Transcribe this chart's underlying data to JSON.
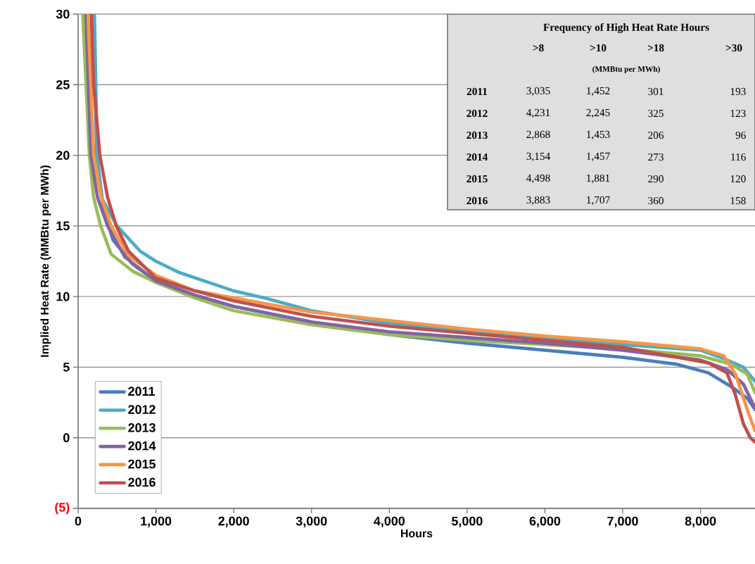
{
  "chart_data": {
    "type": "line",
    "xlabel": "Hours",
    "ylabel": "Implied Heat Rate (MMBtu per MWh)",
    "xlim": [
      0,
      8700
    ],
    "ylim": [
      -5,
      30
    ],
    "xticks": [
      0,
      {
        "value": 1000,
        "label": "1,000"
      },
      {
        "value": 2000,
        "label": "2,000"
      },
      {
        "value": 3000,
        "label": "3,000"
      },
      {
        "value": 4000,
        "label": "4,000"
      },
      {
        "value": 5000,
        "label": "5,000"
      },
      {
        "value": 6000,
        "label": "6,000"
      },
      {
        "value": 7000,
        "label": "7,000"
      },
      {
        "value": 8000,
        "label": "8,000"
      }
    ],
    "yticks": [
      {
        "value": -5,
        "label": "(5)"
      },
      0,
      5,
      10,
      15,
      20,
      25,
      30
    ],
    "grid": "y",
    "legend": "bottom left",
    "series": [
      {
        "name": "2011",
        "color": "#4a7ebb",
        "x": [
          200,
          240,
          330,
          450,
          700,
          1000,
          1500,
          2000,
          3000,
          4000,
          5000,
          6000,
          7000,
          7700,
          8100,
          8400,
          8600,
          8700
        ],
        "values": [
          30,
          20,
          16,
          14,
          12.3,
          11.1,
          10.1,
          9.3,
          8.2,
          7.3,
          6.7,
          6.2,
          5.7,
          5.2,
          4.6,
          3.6,
          2.8,
          2.0
        ]
      },
      {
        "name": "2012",
        "color": "#4bacc6",
        "x": [
          210,
          245,
          300,
          500,
          800,
          1000,
          1300,
          2000,
          2400,
          3000,
          4000,
          5000,
          6000,
          7000,
          8000,
          8300,
          8550,
          8700
        ],
        "values": [
          30,
          20,
          17,
          15,
          13.2,
          12.5,
          11.7,
          10.4,
          9.9,
          9.0,
          8.1,
          7.5,
          7.0,
          6.6,
          6.2,
          5.6,
          5.0,
          4.0
        ]
      },
      {
        "name": "2013",
        "color": "#9bbb59",
        "x": [
          60,
          145,
          200,
          290,
          425,
          700,
          1000,
          1500,
          2000,
          3000,
          4000,
          5000,
          6000,
          7000,
          8000,
          8400,
          8600,
          8700
        ],
        "values": [
          30,
          20,
          17,
          15,
          13,
          11.8,
          11.0,
          9.9,
          9.0,
          8.0,
          7.3,
          6.9,
          6.6,
          6.3,
          5.8,
          5.2,
          4.5,
          3.2
        ]
      },
      {
        "name": "2014",
        "color": "#8064a2",
        "x": [
          100,
          165,
          250,
          380,
          600,
          1000,
          1500,
          2000,
          3000,
          4000,
          5000,
          6000,
          7000,
          8000,
          8350,
          8550,
          8700
        ],
        "values": [
          30,
          20,
          17,
          15,
          12.8,
          11.1,
          10.1,
          9.3,
          8.2,
          7.5,
          7.1,
          6.7,
          6.2,
          5.5,
          4.8,
          3.8,
          2.1
        ]
      },
      {
        "name": "2015",
        "color": "#f79646",
        "x": [
          127,
          200,
          300,
          425,
          650,
          1000,
          1500,
          2000,
          3000,
          4000,
          5000,
          6000,
          7000,
          8000,
          8300,
          8450,
          8600,
          8700
        ],
        "values": [
          30,
          20,
          17,
          15,
          12.9,
          11.5,
          10.4,
          9.9,
          8.9,
          8.3,
          7.7,
          7.2,
          6.8,
          6.3,
          5.8,
          4.5,
          2.0,
          0.5
        ]
      },
      {
        "name": "2016",
        "color": "#c0504d",
        "x": [
          170,
          200,
          280,
          380,
          490,
          650,
          1000,
          1500,
          2000,
          3000,
          4000,
          5000,
          6000,
          7000,
          8100,
          8340,
          8450,
          8550,
          8640,
          8700
        ],
        "values": [
          30,
          25,
          20,
          17,
          15,
          13.2,
          11.3,
          10.4,
          9.7,
          8.6,
          7.9,
          7.4,
          6.9,
          6.4,
          5.3,
          4.6,
          3.0,
          1.0,
          0,
          -0.3
        ]
      }
    ],
    "annotations": [
      "Frequency of High Heat Rate Hours",
      ">8",
      ">10",
      ">18",
      ">30",
      "(MMBtu per MWh)",
      "2011",
      "3,035",
      "1,452",
      "301",
      "193",
      "2012",
      "4,231",
      "2,245",
      "325",
      "123",
      "2013",
      "2,868",
      "1,453",
      "206",
      "96",
      "2014",
      "3,154",
      "1,457",
      "273",
      "116",
      "2015",
      "4,498",
      "1,881",
      "290",
      "120",
      "2016",
      "3,883",
      "1,707",
      "360",
      "158"
    ]
  }
}
